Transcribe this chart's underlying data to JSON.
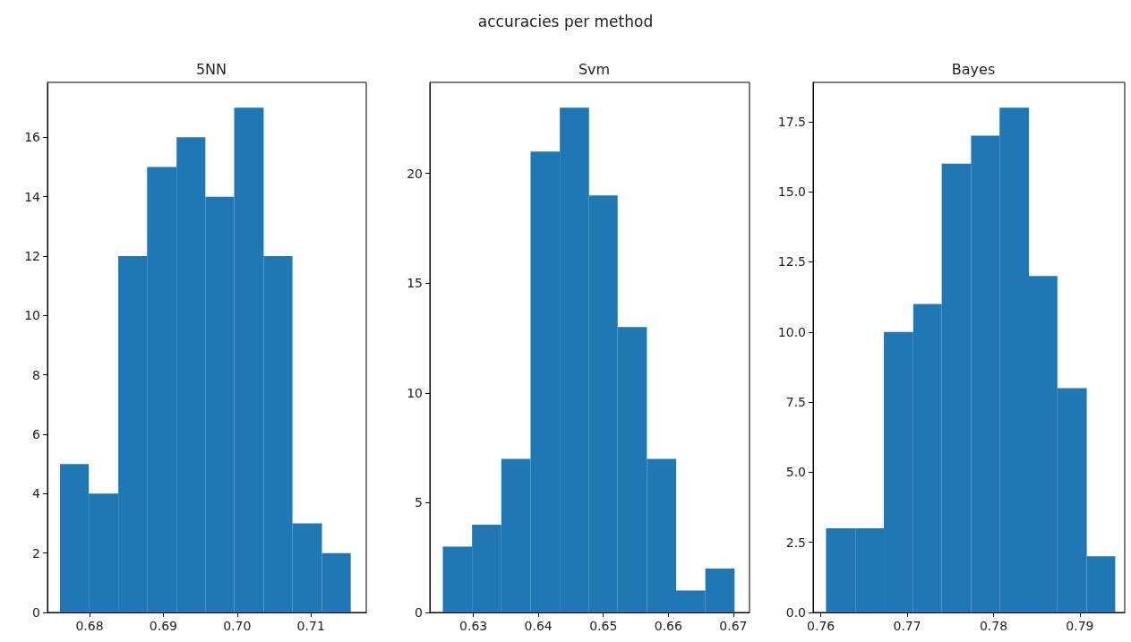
{
  "chart_data": [
    {
      "type": "histogram",
      "title": "5NN",
      "annotations": [
        "accuracies per method"
      ],
      "color": "#1f77b4",
      "bins": [
        0.676,
        0.6799,
        0.6839,
        0.6878,
        0.6918,
        0.6957,
        0.6996,
        0.7036,
        0.7075,
        0.7115,
        0.7154
      ],
      "values": [
        5,
        4,
        12,
        15,
        16,
        14,
        17,
        12,
        3,
        2
      ],
      "xlim": [
        0.6743,
        0.7175
      ],
      "xticks": [
        0.68,
        0.69,
        {
          "value": 0.7,
          "label": "0.70"
        },
        0.71
      ],
      "ylim": [
        0,
        17.85
      ],
      "yticks": [
        0,
        2,
        4,
        6,
        8,
        10,
        12,
        14,
        16
      ]
    },
    {
      "type": "histogram",
      "title": "Svm",
      "color": "#1f77b4",
      "bins": [
        0.6253,
        0.6298,
        0.6343,
        0.6388,
        0.6433,
        0.6478,
        0.6522,
        0.6567,
        0.6612,
        0.6657,
        0.6702
      ],
      "values": [
        3,
        4,
        7,
        21,
        23,
        19,
        13,
        7,
        1,
        2
      ],
      "xlim": [
        0.6233,
        0.6725
      ],
      "xticks": [
        0.63,
        0.64,
        0.65,
        0.66,
        0.67
      ],
      "ylim": [
        0,
        24.15
      ],
      "yticks": [
        0,
        5,
        10,
        15,
        20
      ]
    },
    {
      "type": "histogram",
      "title": "Bayes",
      "color": "#1f77b4",
      "bins": [
        0.7606,
        0.764,
        0.7673,
        0.7707,
        0.774,
        0.7774,
        0.7807,
        0.7841,
        0.7874,
        0.7908,
        0.7941
      ],
      "values": [
        3,
        3,
        10,
        11,
        16,
        17,
        18,
        12,
        8,
        2
      ],
      "xlim": [
        0.7591,
        0.7952
      ],
      "xticks": [
        0.76,
        0.77,
        0.78,
        0.79
      ],
      "ylim": [
        0,
        18.9
      ],
      "yticks": [
        {
          "value": 0,
          "label": "0.0"
        },
        2.5,
        {
          "value": 5,
          "label": "5.0"
        },
        7.5,
        {
          "value": 10,
          "label": "10.0"
        },
        12.5,
        {
          "value": 15,
          "label": "15.0"
        },
        17.5
      ]
    }
  ]
}
